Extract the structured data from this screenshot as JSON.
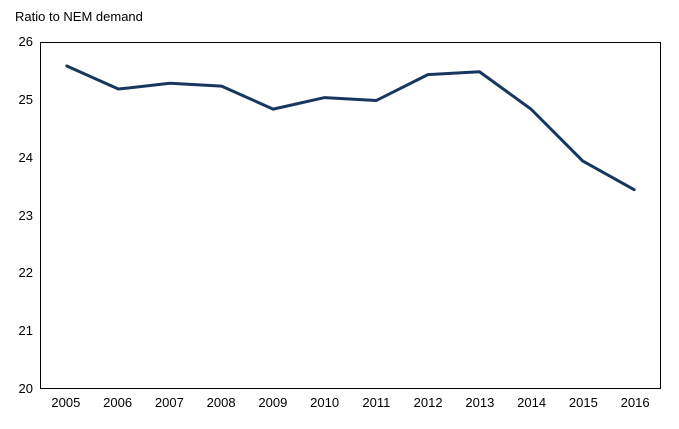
{
  "title": "Ratio to NEM demand",
  "colors": {
    "line": "#17375E",
    "axis": "#000000",
    "text": "#000000",
    "background": "#FFFFFF"
  },
  "chart_data": {
    "type": "line",
    "title": "Ratio to NEM demand",
    "xlabel": "",
    "ylabel": "Ratio to NEM demand",
    "categories": [
      "2005",
      "2006",
      "2007",
      "2008",
      "2009",
      "2010",
      "2011",
      "2012",
      "2013",
      "2014",
      "2015",
      "2016"
    ],
    "series": [
      {
        "name": "Ratio to NEM demand",
        "values": [
          25.6,
          25.2,
          25.3,
          25.25,
          24.85,
          25.05,
          25.0,
          25.45,
          25.5,
          24.85,
          23.95,
          23.45
        ]
      }
    ],
    "ylim": [
      20,
      26
    ],
    "yticks": [
      20,
      21,
      22,
      23,
      24,
      25,
      26
    ],
    "grid": false,
    "legend_position": "none",
    "line_width": 3
  }
}
